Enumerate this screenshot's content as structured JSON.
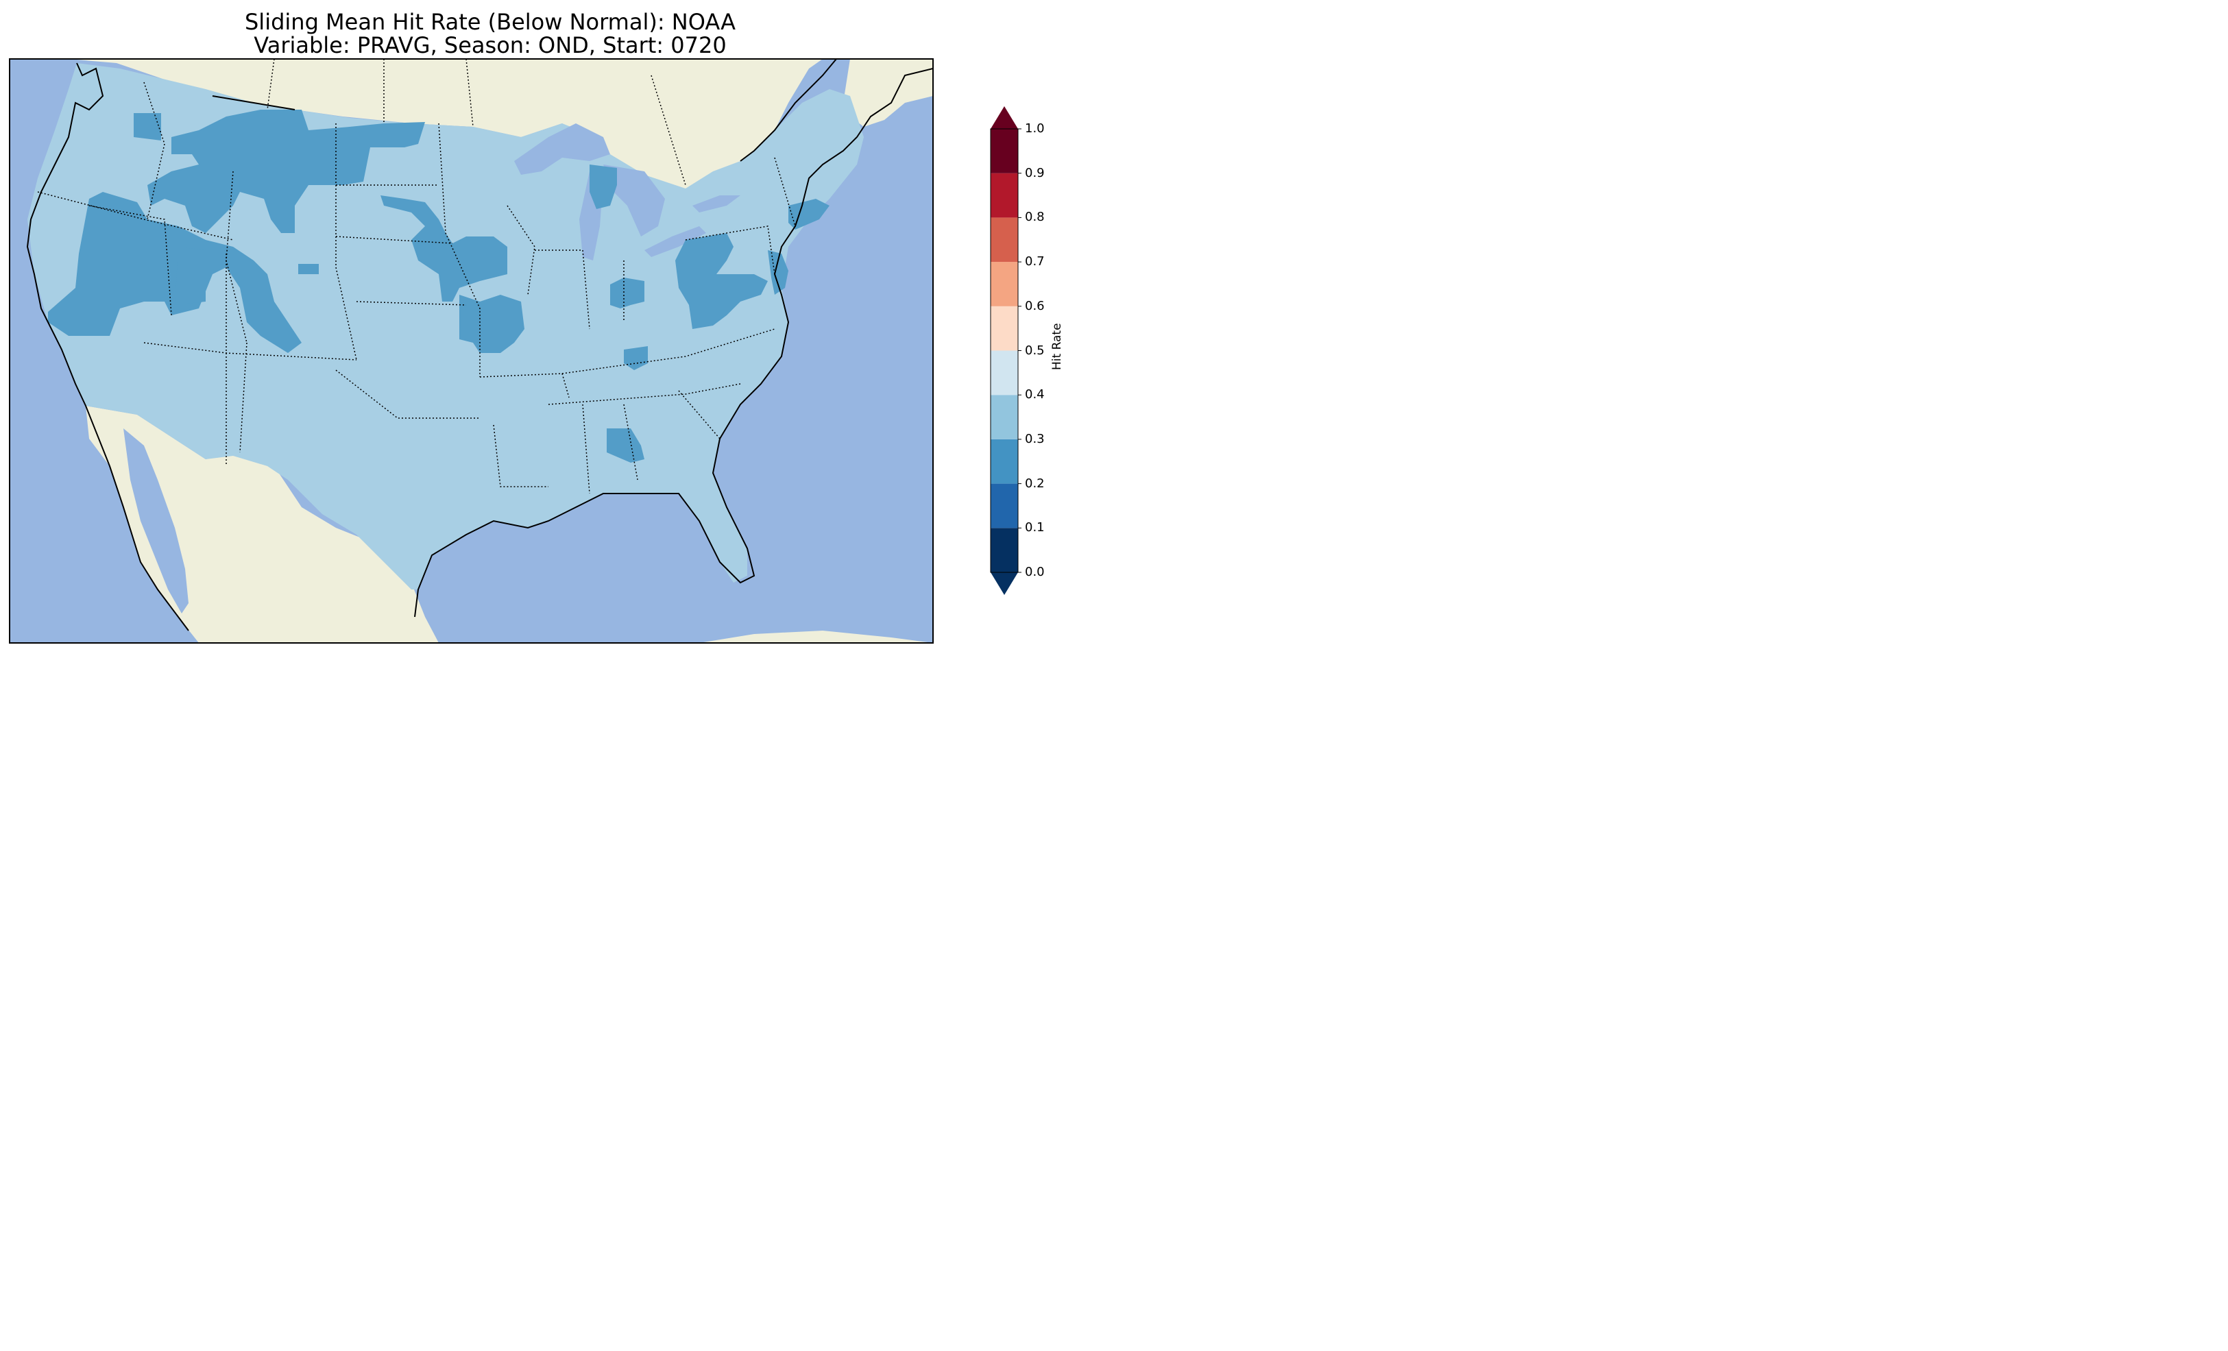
{
  "title": {
    "line1": "Sliding Mean Hit Rate (Below Normal): NOAA",
    "line2": "Variable: PRAVG, Season: OND, Start: 0720"
  },
  "colors": {
    "ocean": "#97b6e1",
    "land": "#efefdb",
    "hit_0_2_0_3": "#539dc8",
    "hit_0_3_0_4": "#a8cfe4",
    "border": "#000000"
  },
  "colorbar": {
    "label": "Hit Rate",
    "ticks": [
      "0.0",
      "0.1",
      "0.2",
      "0.3",
      "0.4",
      "0.5",
      "0.6",
      "0.7",
      "0.8",
      "0.9",
      "1.0"
    ],
    "bins": [
      {
        "range": "0.0-0.1",
        "color": "#053061"
      },
      {
        "range": "0.1-0.2",
        "color": "#2166ac"
      },
      {
        "range": "0.2-0.3",
        "color": "#4393c3"
      },
      {
        "range": "0.3-0.4",
        "color": "#92c5de"
      },
      {
        "range": "0.4-0.5",
        "color": "#d1e5f0"
      },
      {
        "range": "0.5-0.6",
        "color": "#fddbc7"
      },
      {
        "range": "0.6-0.7",
        "color": "#f4a582"
      },
      {
        "range": "0.7-0.8",
        "color": "#d6604d"
      },
      {
        "range": "0.8-0.9",
        "color": "#b2182b"
      },
      {
        "range": "0.9-1.0",
        "color": "#67001f"
      }
    ],
    "extend": "both"
  },
  "map_summary": {
    "background_hit_rate_bin": "0.3-0.4",
    "lower_hit_rate_regions_bin": "0.2-0.3",
    "lower_hit_rate_regions": [
      "Northern Rockies / Montana",
      "Nevada / Utah",
      "Colorado",
      "Nebraska / Kansas",
      "Pennsylvania / Virginia",
      "Southern New England",
      "Central Alabama"
    ]
  }
}
